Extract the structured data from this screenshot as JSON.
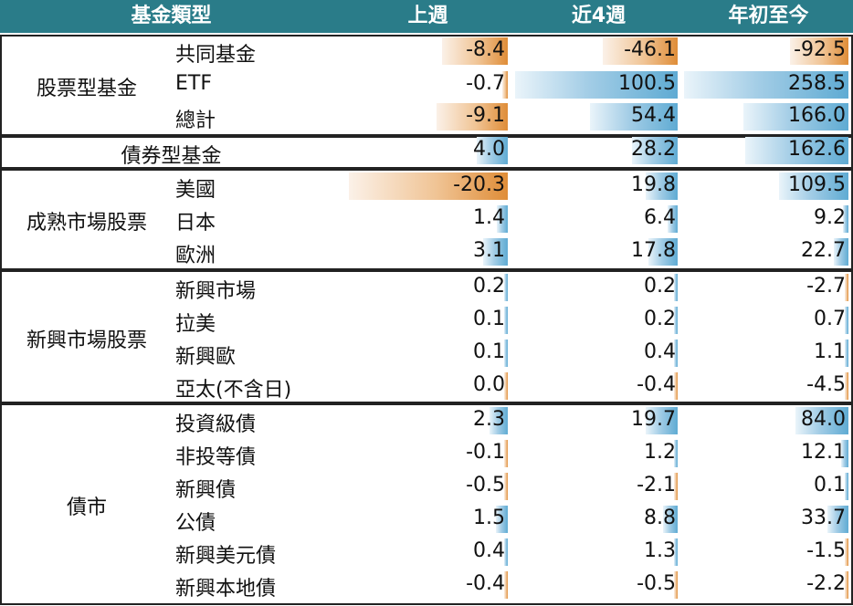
{
  "headers": [
    "基金類型",
    "上週",
    "近4週",
    "年初至今"
  ],
  "colors": {
    "header_bg": "#2a7c89",
    "positive_bar": "#5fabd3",
    "negative_bar": "#df8d38"
  },
  "chart_data": {
    "type": "table",
    "columns": [
      "上週",
      "近4週",
      "年初至今"
    ],
    "groups": [
      {
        "name": "股票型基金",
        "rows": [
          {
            "label": "共同基金",
            "values": [
              -8.4,
              -46.1,
              -92.5
            ]
          },
          {
            "label": "ETF",
            "values": [
              -0.7,
              100.5,
              258.5
            ]
          },
          {
            "label": "總計",
            "values": [
              -9.1,
              54.4,
              166.0
            ]
          }
        ]
      },
      {
        "name": "債券型基金",
        "rows": [
          {
            "label": "",
            "values": [
              4.0,
              28.2,
              162.6
            ]
          }
        ]
      },
      {
        "name": "成熟市場股票",
        "rows": [
          {
            "label": "美國",
            "values": [
              -20.3,
              19.8,
              109.5
            ]
          },
          {
            "label": "日本",
            "values": [
              1.4,
              6.4,
              9.2
            ]
          },
          {
            "label": "歐洲",
            "values": [
              3.1,
              17.8,
              22.7
            ]
          }
        ]
      },
      {
        "name": "新興市場股票",
        "rows": [
          {
            "label": "新興市場",
            "values": [
              0.2,
              0.2,
              -2.7
            ]
          },
          {
            "label": "拉美",
            "values": [
              0.1,
              0.2,
              0.7
            ]
          },
          {
            "label": "新興歐",
            "values": [
              0.1,
              0.4,
              1.1
            ]
          },
          {
            "label": "亞太(不含日)",
            "values": [
              0.0,
              -0.4,
              -4.5
            ]
          }
        ]
      },
      {
        "name": "債市",
        "rows": [
          {
            "label": "投資級債",
            "values": [
              2.3,
              19.7,
              84.0
            ]
          },
          {
            "label": "非投等債",
            "values": [
              -0.1,
              1.2,
              12.1
            ]
          },
          {
            "label": "新興債",
            "values": [
              -0.5,
              -2.1,
              0.1
            ]
          },
          {
            "label": "公債",
            "values": [
              1.5,
              8.8,
              33.7
            ]
          },
          {
            "label": "新興美元債",
            "values": [
              0.4,
              1.3,
              -1.5
            ]
          },
          {
            "label": "新興本地債",
            "values": [
              -0.4,
              -0.5,
              -2.2
            ]
          }
        ]
      }
    ]
  }
}
